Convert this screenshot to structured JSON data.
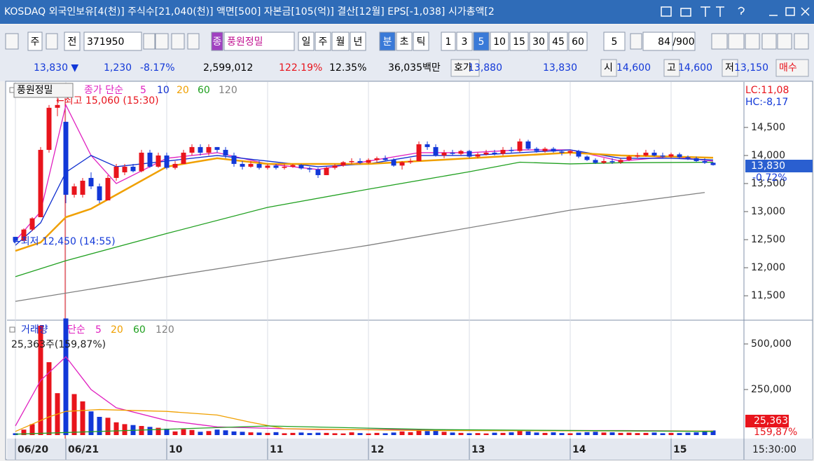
{
  "title_bar": {
    "text": "KOSDAQ 외국인보유[4(천)] 주식수[21,040(천)] 액면[500] 자본금[105(억)] 결산[12월] EPS[-1,038] 시가총액[2"
  },
  "toolbar": {
    "items": [
      "주",
      "전",
      "371950",
      "종",
      "풍원정밀",
      "일",
      "주",
      "월",
      "년",
      "분",
      "초",
      "틱",
      "1",
      "3",
      "5",
      "10",
      "15",
      "30",
      "45",
      "60",
      "5",
      "84",
      "/900"
    ]
  },
  "quote_row": {
    "items": [
      "13,830 ▼",
      "1,230",
      "-8.17%",
      "2,599,012",
      "122.19%",
      "12.35%",
      "36,035백만",
      "호가",
      "13,880",
      "13,830",
      "시",
      "14,600",
      "고",
      "14,600",
      "저",
      "13,150",
      "매수"
    ]
  },
  "chart_data": [
    {
      "type": "candlestick",
      "up_color": "#e8141c",
      "down_color": "#1238d8",
      "legend": [
        {
          "text": "풍원정밀",
          "color": "#000000"
        },
        {
          "text": "종가 단순",
          "color": "#e020c0"
        },
        {
          "text": "5",
          "color": "#e020c0"
        },
        {
          "text": "10",
          "color": "#1030d0"
        },
        {
          "text": "20",
          "color": "#f0a000"
        },
        {
          "text": "60",
          "color": "#20a020"
        },
        {
          "text": "120",
          "color": "#808080"
        }
      ],
      "annotations": {
        "high": "←최고 15,060 (15:30)",
        "low": "←최저 12,450 (14:55)",
        "lc": "LC:11,08",
        "hc": "HC:-8,17",
        "last": "13,830",
        "change": "-0.72%"
      },
      "ylim": [
        11090,
        15310
      ],
      "yticks": [
        {
          "value": 11500,
          "label": "11,500"
        },
        {
          "value": 12000,
          "label": "12,000"
        },
        {
          "value": 12500,
          "label": "12,500"
        },
        {
          "value": 13000,
          "label": "13,000"
        },
        {
          "value": 13500,
          "label": "13,500"
        },
        {
          "value": 14000,
          "label": "14,000"
        },
        {
          "value": 14500,
          "label": "14,500"
        }
      ],
      "open": [
        12550,
        12480,
        12680,
        12900,
        14100,
        14850,
        14600,
        13300,
        13300,
        13600,
        13450,
        13200,
        13600,
        13700,
        13800,
        13720,
        14050,
        13800,
        14000,
        13780,
        13850,
        14050,
        14150,
        14050,
        14150,
        14100,
        14000,
        13850,
        13800,
        13850,
        13780,
        13820,
        13780,
        13800,
        13830,
        13770,
        13750,
        13650,
        13780,
        13820,
        13880,
        13900,
        13870,
        13920,
        13950,
        13920,
        13820,
        13880,
        13900,
        14200,
        14150,
        14000,
        14050,
        14030,
        14080,
        13980,
        14020,
        14050,
        14030,
        14100,
        14080,
        14250,
        14120,
        14080,
        14120,
        14070,
        14050,
        14080,
        13980,
        13920,
        13870,
        13900,
        13880,
        13920,
        13980,
        14000,
        14050,
        14000,
        13980,
        14020,
        13970,
        13950,
        13900,
        13870
      ],
      "high": [
        12550,
        12700,
        12900,
        14150,
        14900,
        15060,
        14600,
        13500,
        13600,
        13700,
        13500,
        13650,
        13850,
        13850,
        13850,
        14100,
        14100,
        14050,
        14050,
        13900,
        14100,
        14200,
        14200,
        14200,
        14150,
        14150,
        14050,
        13900,
        13900,
        13900,
        13850,
        13850,
        13850,
        13850,
        13850,
        13800,
        13780,
        13800,
        13850,
        13900,
        13950,
        13950,
        13950,
        13980,
        14000,
        13950,
        13900,
        13950,
        14250,
        14250,
        14200,
        14100,
        14100,
        14100,
        14100,
        14050,
        14100,
        14100,
        14150,
        14150,
        14300,
        14280,
        14150,
        14150,
        14150,
        14100,
        14100,
        14100,
        14000,
        13950,
        13950,
        13950,
        13950,
        14000,
        14050,
        14100,
        14100,
        14050,
        14050,
        14050,
        14000,
        13980,
        13950,
        13880
      ],
      "low": [
        12450,
        12470,
        12650,
        12900,
        14050,
        14700,
        13150,
        13250,
        13250,
        13400,
        13150,
        13200,
        13550,
        13650,
        13700,
        13700,
        13780,
        13780,
        13750,
        13750,
        13850,
        14000,
        14000,
        14000,
        14050,
        13950,
        13800,
        13750,
        13780,
        13750,
        13750,
        13750,
        13750,
        13780,
        13750,
        13700,
        13600,
        13650,
        13750,
        13800,
        13850,
        13850,
        13850,
        13880,
        13900,
        13800,
        13750,
        13850,
        13900,
        14100,
        13980,
        13950,
        14000,
        14000,
        13950,
        13950,
        14000,
        14000,
        14000,
        14050,
        14050,
        14100,
        14050,
        14050,
        14050,
        14000,
        14000,
        13950,
        13900,
        13850,
        13850,
        13850,
        13850,
        13900,
        13950,
        13980,
        13980,
        13950,
        13950,
        13950,
        13920,
        13880,
        13850,
        13820
      ],
      "close": [
        12480,
        12680,
        12880,
        14100,
        14850,
        14900,
        13300,
        13450,
        13550,
        13450,
        13200,
        13600,
        13800,
        13800,
        13720,
        14050,
        13800,
        14000,
        13780,
        13850,
        14050,
        14150,
        14050,
        14150,
        14100,
        14000,
        13850,
        13800,
        13850,
        13780,
        13820,
        13780,
        13800,
        13830,
        13770,
        13750,
        13650,
        13780,
        13820,
        13880,
        13900,
        13870,
        13920,
        13950,
        13920,
        13820,
        13880,
        13900,
        14200,
        14150,
        14000,
        14050,
        14030,
        14080,
        13980,
        14020,
        14050,
        14030,
        14100,
        14080,
        14250,
        14120,
        14080,
        14120,
        14070,
        14050,
        14080,
        13980,
        13920,
        13870,
        13900,
        13880,
        13920,
        13980,
        14000,
        14050,
        14000,
        13980,
        14020,
        13970,
        13950,
        13900,
        13870,
        13830
      ],
      "lines": [
        {
          "color": "#e020c0",
          "x": [
            0,
            3,
            6,
            9,
            12,
            18,
            24,
            30,
            36,
            42,
            48,
            54,
            60,
            66,
            72,
            78,
            83
          ],
          "values": [
            12480,
            13000,
            14900,
            14000,
            13500,
            13950,
            14050,
            13850,
            13750,
            13900,
            14050,
            14050,
            14100,
            14100,
            13900,
            13980,
            13900
          ]
        },
        {
          "color": "#1030d0",
          "x": [
            0,
            3,
            6,
            9,
            12,
            18,
            24,
            30,
            36,
            42,
            48,
            54,
            60,
            66,
            72,
            78,
            83
          ],
          "values": [
            12400,
            12800,
            13700,
            14000,
            13800,
            13900,
            14000,
            13900,
            13800,
            13850,
            14000,
            14000,
            14050,
            14100,
            13950,
            13950,
            13920
          ]
        },
        {
          "color": "#f0a000",
          "x": [
            0,
            3,
            6,
            9,
            12,
            18,
            24,
            30,
            36,
            42,
            48,
            54,
            60,
            66,
            72,
            78,
            83
          ],
          "values": [
            12300,
            12450,
            12900,
            13050,
            13300,
            13800,
            13950,
            13850,
            13850,
            13850,
            13900,
            13950,
            14000,
            14050,
            14000,
            13980,
            13960
          ]
        },
        {
          "color": "#20a020",
          "x": [
            0,
            6,
            18,
            30,
            42,
            54,
            60,
            66,
            72,
            83
          ],
          "values": [
            11840,
            12125,
            12610,
            13075,
            13400,
            13710,
            13880,
            13850,
            13870,
            13880
          ]
        },
        {
          "color": "#808080",
          "x": [
            0,
            18,
            42,
            66,
            82
          ],
          "values": [
            11400,
            11840,
            12400,
            13025,
            13340
          ]
        }
      ]
    },
    {
      "type": "bar",
      "up_color": "#e8141c",
      "down_color": "#1238d8",
      "legend": [
        {
          "text": "거래량",
          "color": "#1030d0"
        },
        {
          "text": "단순",
          "color": "#e020c0"
        },
        {
          "text": "5",
          "color": "#e020c0"
        },
        {
          "text": "20",
          "color": "#f0a000"
        },
        {
          "text": "60",
          "color": "#20a020"
        },
        {
          "text": "120",
          "color": "#808080"
        }
      ],
      "annotations": {
        "info": "25,363주(159,87%)",
        "last": "25,363",
        "ratio": "159,87%",
        "time": "15:30:00"
      },
      "ylim": [
        0,
        619000
      ],
      "yticks": [
        {
          "value": 250000,
          "label": "250,000"
        },
        {
          "value": 500000,
          "label": "500,000"
        }
      ],
      "xticks": [
        {
          "value": 0,
          "label": "06/20"
        },
        {
          "value": 6,
          "label": "06/21"
        },
        {
          "value": 18,
          "label": "10"
        },
        {
          "value": 30,
          "label": "11"
        },
        {
          "value": 42,
          "label": "12"
        },
        {
          "value": 54,
          "label": "13"
        },
        {
          "value": 66,
          "label": "14"
        },
        {
          "value": 78,
          "label": "15"
        }
      ],
      "values": [
        10000,
        30000,
        60000,
        600000,
        400000,
        230000,
        640000,
        225000,
        185000,
        130000,
        100000,
        95000,
        70000,
        60000,
        55000,
        50000,
        45000,
        40000,
        35000,
        20000,
        32000,
        28000,
        18000,
        22000,
        30000,
        26000,
        20000,
        18000,
        15000,
        14000,
        12000,
        16000,
        10000,
        12000,
        14000,
        11000,
        13000,
        12000,
        10000,
        9000,
        15000,
        11000,
        9000,
        12000,
        10000,
        14000,
        20000,
        16000,
        30000,
        22000,
        26000,
        18000,
        14000,
        12000,
        10000,
        11000,
        9000,
        13000,
        12000,
        15000,
        28000,
        20000,
        14000,
        12000,
        15000,
        11000,
        10000,
        13000,
        16000,
        18000,
        14000,
        15000,
        12000,
        13000,
        11000,
        12000,
        14000,
        10000,
        12000,
        11000,
        13000,
        15000,
        18000,
        25363
      ],
      "lines": [
        {
          "color": "#e020c0",
          "x": [
            0,
            3,
            6,
            9,
            12,
            18,
            24,
            36,
            48,
            60,
            72,
            83
          ],
          "values": [
            50000,
            300000,
            430000,
            250000,
            150000,
            80000,
            45000,
            30000,
            30000,
            25000,
            25000,
            22000
          ]
        },
        {
          "color": "#f0a000",
          "x": [
            0,
            4,
            6,
            10,
            18,
            24,
            28,
            32,
            48,
            83
          ],
          "values": [
            20000,
            100000,
            130000,
            140000,
            130000,
            110000,
            70000,
            35000,
            25000,
            22000
          ]
        },
        {
          "color": "#20a020",
          "x": [
            0,
            30,
            50,
            83
          ],
          "values": [
            5000,
            50000,
            30000,
            20000
          ]
        }
      ]
    }
  ]
}
